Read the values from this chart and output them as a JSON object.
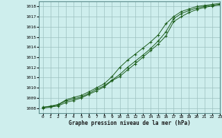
{
  "title": "Graphe pression niveau de la mer (hPa)",
  "bg_color": "#ceeeed",
  "grid_color": "#9bbfbe",
  "line_color": "#1a5c1a",
  "xlim": [
    -0.5,
    23
  ],
  "ylim": [
    1007.5,
    1018.5
  ],
  "xticks": [
    0,
    1,
    2,
    3,
    4,
    5,
    6,
    7,
    8,
    9,
    10,
    11,
    12,
    13,
    14,
    15,
    16,
    17,
    18,
    19,
    20,
    21,
    22,
    23
  ],
  "yticks": [
    1008,
    1009,
    1010,
    1011,
    1012,
    1013,
    1014,
    1015,
    1016,
    1017,
    1018
  ],
  "series1_x": [
    0,
    1,
    2,
    3,
    4,
    5,
    6,
    7,
    8,
    9,
    10,
    11,
    12,
    13,
    14,
    15,
    16,
    17,
    18,
    19,
    20,
    21,
    22,
    23
  ],
  "series1_y": [
    1008.1,
    1008.15,
    1008.3,
    1008.7,
    1008.9,
    1009.1,
    1009.45,
    1009.85,
    1010.2,
    1010.75,
    1011.3,
    1012.0,
    1012.6,
    1013.2,
    1013.85,
    1014.6,
    1015.5,
    1016.8,
    1017.3,
    1017.6,
    1017.85,
    1018.0,
    1018.1,
    1018.2
  ],
  "series2_x": [
    0,
    1,
    2,
    3,
    4,
    5,
    6,
    7,
    8,
    9,
    10,
    11,
    12,
    13,
    14,
    15,
    16,
    17,
    18,
    19,
    20,
    21,
    22,
    23
  ],
  "series2_y": [
    1008.0,
    1008.1,
    1008.2,
    1008.55,
    1008.75,
    1009.0,
    1009.35,
    1009.7,
    1010.1,
    1010.7,
    1011.1,
    1011.75,
    1012.35,
    1013.0,
    1013.65,
    1014.3,
    1015.1,
    1016.5,
    1017.0,
    1017.4,
    1017.7,
    1017.9,
    1018.05,
    1018.15
  ],
  "series3_x": [
    0,
    1,
    2,
    3,
    4,
    5,
    6,
    7,
    8,
    9,
    10,
    11,
    12,
    13,
    14,
    15,
    16,
    17,
    18,
    19,
    20,
    21,
    22,
    23
  ],
  "series3_y": [
    1008.05,
    1008.2,
    1008.35,
    1008.8,
    1009.05,
    1009.25,
    1009.6,
    1010.0,
    1010.4,
    1011.1,
    1012.0,
    1012.7,
    1013.3,
    1013.9,
    1014.5,
    1015.2,
    1016.3,
    1017.0,
    1017.5,
    1017.75,
    1018.0,
    1018.1,
    1018.2,
    1018.3
  ]
}
